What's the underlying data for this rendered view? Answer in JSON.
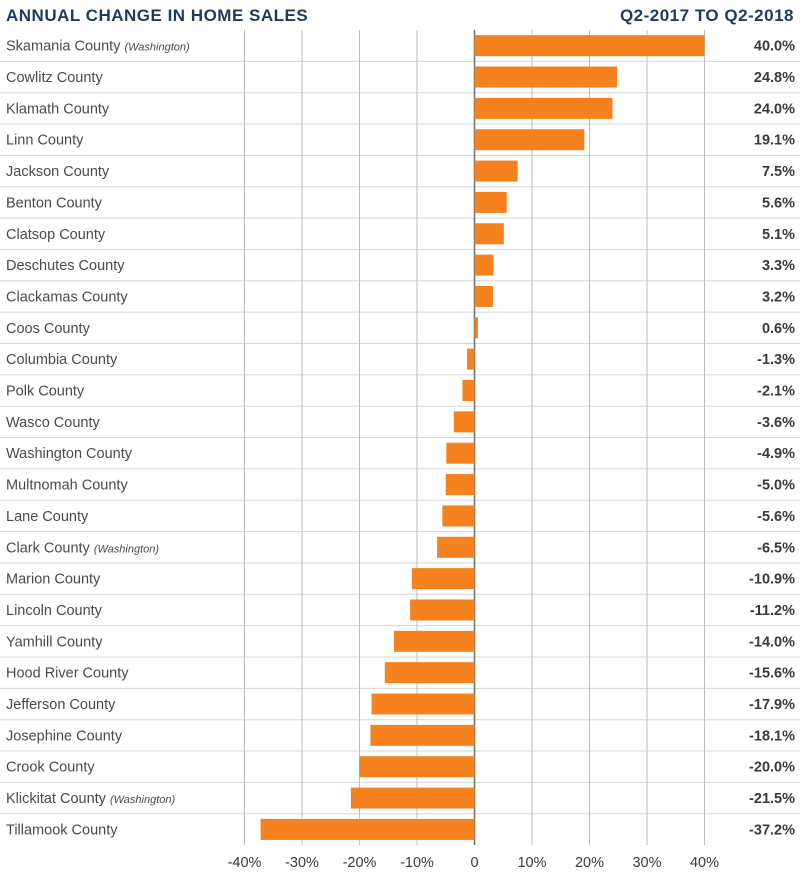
{
  "chart_data": {
    "type": "bar",
    "orientation": "horizontal",
    "title": "ANNUAL CHANGE IN HOME SALES",
    "subtitle": "Q2-2017 TO Q2-2018",
    "xlim": [
      -40,
      40
    ],
    "x_ticks": [
      -40,
      -30,
      -20,
      -10,
      0,
      10,
      20,
      30,
      40
    ],
    "x_tick_labels": [
      "-40%",
      "-30%",
      "-20%",
      "-10%",
      "0",
      "10%",
      "20%",
      "30%",
      "40%"
    ],
    "grid": "vertical",
    "bar_color": "#f5821f",
    "title_color": "#1f3a5c",
    "rows": [
      {
        "name": "Skamania County",
        "qualifier": "(Washington)",
        "value": 40.0,
        "label": "40.0%"
      },
      {
        "name": "Cowlitz County",
        "qualifier": "",
        "value": 24.8,
        "label": "24.8%"
      },
      {
        "name": "Klamath County",
        "qualifier": "",
        "value": 24.0,
        "label": "24.0%"
      },
      {
        "name": "Linn County",
        "qualifier": "",
        "value": 19.1,
        "label": "19.1%"
      },
      {
        "name": "Jackson County",
        "qualifier": "",
        "value": 7.5,
        "label": "7.5%"
      },
      {
        "name": "Benton County",
        "qualifier": "",
        "value": 5.6,
        "label": "5.6%"
      },
      {
        "name": "Clatsop County",
        "qualifier": "",
        "value": 5.1,
        "label": "5.1%"
      },
      {
        "name": "Deschutes County",
        "qualifier": "",
        "value": 3.3,
        "label": "3.3%"
      },
      {
        "name": "Clackamas County",
        "qualifier": "",
        "value": 3.2,
        "label": "3.2%"
      },
      {
        "name": "Coos County",
        "qualifier": "",
        "value": 0.6,
        "label": "0.6%"
      },
      {
        "name": "Columbia County",
        "qualifier": "",
        "value": -1.3,
        "label": "-1.3%"
      },
      {
        "name": "Polk County",
        "qualifier": "",
        "value": -2.1,
        "label": "-2.1%"
      },
      {
        "name": "Wasco County",
        "qualifier": "",
        "value": -3.6,
        "label": "-3.6%"
      },
      {
        "name": "Washington County",
        "qualifier": "",
        "value": -4.9,
        "label": "-4.9%"
      },
      {
        "name": "Multnomah County",
        "qualifier": "",
        "value": -5.0,
        "label": "-5.0%"
      },
      {
        "name": "Lane County",
        "qualifier": "",
        "value": -5.6,
        "label": "-5.6%"
      },
      {
        "name": "Clark County",
        "qualifier": "(Washington)",
        "value": -6.5,
        "label": "-6.5%"
      },
      {
        "name": "Marion County",
        "qualifier": "",
        "value": -10.9,
        "label": "-10.9%"
      },
      {
        "name": "Lincoln County",
        "qualifier": "",
        "value": -11.2,
        "label": "-11.2%"
      },
      {
        "name": "Yamhill County",
        "qualifier": "",
        "value": -14.0,
        "label": "-14.0%"
      },
      {
        "name": "Hood River County",
        "qualifier": "",
        "value": -15.6,
        "label": "-15.6%"
      },
      {
        "name": "Jefferson County",
        "qualifier": "",
        "value": -17.9,
        "label": "-17.9%"
      },
      {
        "name": "Josephine County",
        "qualifier": "",
        "value": -18.1,
        "label": "-18.1%"
      },
      {
        "name": "Crook County",
        "qualifier": "",
        "value": -20.0,
        "label": "-20.0%"
      },
      {
        "name": "Klickitat County",
        "qualifier": "(Washington)",
        "value": -21.5,
        "label": "-21.5%"
      },
      {
        "name": "Tillamook County",
        "qualifier": "",
        "value": -37.2,
        "label": "-37.2%"
      }
    ]
  }
}
